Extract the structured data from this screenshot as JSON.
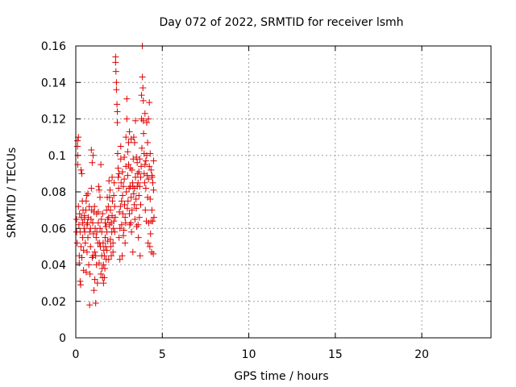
{
  "chart_data": {
    "type": "scatter",
    "title": "Day 072 of 2022, SRMTID for receiver lsmh",
    "xlabel": "GPS time / hours",
    "ylabel": "SRMTID / TECUs",
    "xlim": [
      0,
      24
    ],
    "ylim": [
      0,
      0.16
    ],
    "x_ticks": [
      0,
      5,
      10,
      15,
      20
    ],
    "x_tick_labels": [
      "0",
      "5",
      "10",
      "15",
      "20"
    ],
    "y_ticks": [
      0,
      0.02,
      0.04,
      0.06,
      0.08,
      0.1,
      0.12,
      0.14,
      0.16
    ],
    "y_tick_labels": [
      "0",
      "0.02",
      "0.04",
      "0.06",
      "0.08",
      "0.1",
      "0.12",
      "0.14",
      "0.16"
    ],
    "grid": true,
    "marker": "plus",
    "color": "#e00000",
    "series": [
      {
        "name": "SRMTID",
        "points": [
          [
            0.05,
            0.065
          ],
          [
            0.05,
            0.058
          ],
          [
            0.08,
            0.052
          ],
          [
            0.1,
            0.108
          ],
          [
            0.1,
            0.105
          ],
          [
            0.12,
            0.1
          ],
          [
            0.12,
            0.095
          ],
          [
            0.15,
            0.11
          ],
          [
            0.15,
            0.072
          ],
          [
            0.18,
            0.062
          ],
          [
            0.2,
            0.045
          ],
          [
            0.2,
            0.041
          ],
          [
            0.22,
            0.068
          ],
          [
            0.25,
            0.058
          ],
          [
            0.25,
            0.031
          ],
          [
            0.28,
            0.029
          ],
          [
            0.3,
            0.092
          ],
          [
            0.3,
            0.05
          ],
          [
            0.32,
            0.066
          ],
          [
            0.35,
            0.09
          ],
          [
            0.35,
            0.044
          ],
          [
            0.38,
            0.075
          ],
          [
            0.4,
            0.063
          ],
          [
            0.4,
            0.055
          ],
          [
            0.42,
            0.07
          ],
          [
            0.45,
            0.048
          ],
          [
            0.45,
            0.037
          ],
          [
            0.48,
            0.06
          ],
          [
            0.5,
            0.065
          ],
          [
            0.5,
            0.067
          ],
          [
            0.52,
            0.058
          ],
          [
            0.55,
            0.052
          ],
          [
            0.58,
            0.07
          ],
          [
            0.6,
            0.075
          ],
          [
            0.6,
            0.036
          ],
          [
            0.62,
            0.078
          ],
          [
            0.65,
            0.062
          ],
          [
            0.65,
            0.047
          ],
          [
            0.68,
            0.063
          ],
          [
            0.7,
            0.079
          ],
          [
            0.7,
            0.055
          ],
          [
            0.72,
            0.066
          ],
          [
            0.75,
            0.04
          ],
          [
            0.78,
            0.072
          ],
          [
            0.8,
            0.058
          ],
          [
            0.8,
            0.018
          ],
          [
            0.82,
            0.035
          ],
          [
            0.85,
            0.06
          ],
          [
            0.85,
            0.05
          ],
          [
            0.88,
            0.065
          ],
          [
            0.9,
            0.103
          ],
          [
            0.9,
            0.082
          ],
          [
            0.92,
            0.07
          ],
          [
            0.95,
            0.096
          ],
          [
            0.95,
            0.044
          ],
          [
            0.98,
            0.063
          ],
          [
            1.0,
            0.1
          ],
          [
            1.0,
            0.045
          ],
          [
            1.02,
            0.057
          ],
          [
            1.05,
            0.069
          ],
          [
            1.05,
            0.026
          ],
          [
            1.08,
            0.072
          ],
          [
            1.1,
            0.047
          ],
          [
            1.1,
            0.032
          ],
          [
            1.12,
            0.06
          ],
          [
            1.15,
            0.045
          ],
          [
            1.15,
            0.019
          ],
          [
            1.18,
            0.055
          ],
          [
            1.2,
            0.068
          ],
          [
            1.2,
            0.04
          ],
          [
            1.22,
            0.058
          ],
          [
            1.25,
            0.03
          ],
          [
            1.28,
            0.052
          ],
          [
            1.3,
            0.069
          ],
          [
            1.3,
            0.063
          ],
          [
            1.32,
            0.083
          ],
          [
            1.35,
            0.081
          ],
          [
            1.35,
            0.041
          ],
          [
            1.38,
            0.052
          ],
          [
            1.4,
            0.077
          ],
          [
            1.4,
            0.06
          ],
          [
            1.42,
            0.05
          ],
          [
            1.45,
            0.095
          ],
          [
            1.45,
            0.035
          ],
          [
            1.48,
            0.065
          ],
          [
            1.5,
            0.058
          ],
          [
            1.5,
            0.045
          ],
          [
            1.52,
            0.038
          ],
          [
            1.55,
            0.033
          ],
          [
            1.55,
            0.068
          ],
          [
            1.58,
            0.052
          ],
          [
            1.6,
            0.04
          ],
          [
            1.6,
            0.03
          ],
          [
            1.62,
            0.048
          ],
          [
            1.65,
            0.045
          ],
          [
            1.65,
            0.033
          ],
          [
            1.68,
            0.038
          ],
          [
            1.7,
            0.063
          ],
          [
            1.7,
            0.055
          ],
          [
            1.72,
            0.05
          ],
          [
            1.75,
            0.061
          ],
          [
            1.75,
            0.043
          ],
          [
            1.78,
            0.07
          ],
          [
            1.8,
            0.058
          ],
          [
            1.8,
            0.048
          ],
          [
            1.82,
            0.077
          ],
          [
            1.85,
            0.065
          ],
          [
            1.85,
            0.053
          ],
          [
            1.88,
            0.072
          ],
          [
            1.9,
            0.066
          ],
          [
            1.9,
            0.043
          ],
          [
            1.92,
            0.086
          ],
          [
            1.95,
            0.062
          ],
          [
            1.95,
            0.077
          ],
          [
            1.98,
            0.081
          ],
          [
            2.0,
            0.07
          ],
          [
            2.0,
            0.054
          ],
          [
            2.02,
            0.05
          ],
          [
            2.05,
            0.063
          ],
          [
            2.05,
            0.045
          ],
          [
            2.08,
            0.058
          ],
          [
            2.1,
            0.088
          ],
          [
            2.1,
            0.067
          ],
          [
            2.12,
            0.075
          ],
          [
            2.15,
            0.052
          ],
          [
            2.15,
            0.047
          ],
          [
            2.18,
            0.06
          ],
          [
            2.2,
            0.078
          ],
          [
            2.2,
            0.064
          ],
          [
            2.22,
            0.085
          ],
          [
            2.25,
            0.072
          ],
          [
            2.25,
            0.058
          ],
          [
            2.28,
            0.066
          ],
          [
            2.3,
            0.154
          ],
          [
            2.3,
            0.151
          ],
          [
            2.32,
            0.146
          ],
          [
            2.35,
            0.14
          ],
          [
            2.35,
            0.136
          ],
          [
            2.38,
            0.128
          ],
          [
            2.4,
            0.124
          ],
          [
            2.4,
            0.118
          ],
          [
            2.42,
            0.101
          ],
          [
            2.45,
            0.093
          ],
          [
            2.45,
            0.088
          ],
          [
            2.48,
            0.082
          ],
          [
            2.5,
            0.09
          ],
          [
            2.5,
            0.055
          ],
          [
            2.52,
            0.069
          ],
          [
            2.55,
            0.06
          ],
          [
            2.55,
            0.043
          ],
          [
            2.58,
            0.072
          ],
          [
            2.6,
            0.105
          ],
          [
            2.6,
            0.098
          ],
          [
            2.62,
            0.085
          ],
          [
            2.65,
            0.075
          ],
          [
            2.65,
            0.062
          ],
          [
            2.68,
            0.045
          ],
          [
            2.7,
            0.091
          ],
          [
            2.7,
            0.078
          ],
          [
            2.72,
            0.068
          ],
          [
            2.75,
            0.083
          ],
          [
            2.75,
            0.056
          ],
          [
            2.78,
            0.059
          ],
          [
            2.8,
            0.099
          ],
          [
            2.8,
            0.087
          ],
          [
            2.82,
            0.073
          ],
          [
            2.85,
            0.066
          ],
          [
            2.85,
            0.052
          ],
          [
            2.88,
            0.063
          ],
          [
            2.9,
            0.11
          ],
          [
            2.9,
            0.094
          ],
          [
            2.92,
            0.08
          ],
          [
            2.95,
            0.131
          ],
          [
            2.95,
            0.12
          ],
          [
            2.98,
            0.071
          ],
          [
            3.0,
            0.102
          ],
          [
            3.0,
            0.089
          ],
          [
            3.02,
            0.075
          ],
          [
            3.05,
            0.107
          ],
          [
            3.05,
            0.095
          ],
          [
            3.08,
            0.082
          ],
          [
            3.1,
            0.113
          ],
          [
            3.1,
            0.068
          ],
          [
            3.12,
            0.062
          ],
          [
            3.15,
            0.093
          ],
          [
            3.15,
            0.083
          ],
          [
            3.18,
            0.063
          ],
          [
            3.2,
            0.109
          ],
          [
            3.2,
            0.077
          ],
          [
            3.22,
            0.058
          ],
          [
            3.25,
            0.092
          ],
          [
            3.25,
            0.07
          ],
          [
            3.28,
            0.085
          ],
          [
            3.3,
            0.083
          ],
          [
            3.3,
            0.047
          ],
          [
            3.32,
            0.098
          ],
          [
            3.35,
            0.11
          ],
          [
            3.35,
            0.079
          ],
          [
            3.38,
            0.073
          ],
          [
            3.4,
            0.107
          ],
          [
            3.4,
            0.082
          ],
          [
            3.42,
            0.065
          ],
          [
            3.45,
            0.119
          ],
          [
            3.45,
            0.088
          ],
          [
            3.48,
            0.076
          ],
          [
            3.5,
            0.099
          ],
          [
            3.5,
            0.071
          ],
          [
            3.52,
            0.061
          ],
          [
            3.55,
            0.096
          ],
          [
            3.55,
            0.083
          ],
          [
            3.58,
            0.09
          ],
          [
            3.6,
            0.085
          ],
          [
            3.6,
            0.062
          ],
          [
            3.62,
            0.055
          ],
          [
            3.65,
            0.091
          ],
          [
            3.65,
            0.078
          ],
          [
            3.68,
            0.066
          ],
          [
            3.7,
            0.098
          ],
          [
            3.7,
            0.083
          ],
          [
            3.72,
            0.045
          ],
          [
            3.75,
            0.088
          ],
          [
            3.75,
            0.073
          ],
          [
            3.78,
            0.094
          ],
          [
            3.8,
            0.133
          ],
          [
            3.8,
            0.12
          ],
          [
            3.82,
            0.104
          ],
          [
            3.85,
            0.16
          ],
          [
            3.85,
            0.143
          ],
          [
            3.88,
            0.137
          ],
          [
            3.9,
            0.13
          ],
          [
            3.9,
            0.119
          ],
          [
            3.92,
            0.112
          ],
          [
            3.95,
            0.101
          ],
          [
            3.95,
            0.09
          ],
          [
            3.98,
            0.085
          ],
          [
            4.0,
            0.123
          ],
          [
            4.0,
            0.095
          ],
          [
            4.02,
            0.07
          ],
          [
            4.05,
            0.097
          ],
          [
            4.05,
            0.082
          ],
          [
            4.08,
            0.064
          ],
          [
            4.1,
            0.118
          ],
          [
            4.1,
            0.1
          ],
          [
            4.12,
            0.089
          ],
          [
            4.15,
            0.107
          ],
          [
            4.15,
            0.077
          ],
          [
            4.18,
            0.052
          ],
          [
            4.2,
            0.12
          ],
          [
            4.2,
            0.087
          ],
          [
            4.22,
            0.063
          ],
          [
            4.25,
            0.129
          ],
          [
            4.25,
            0.094
          ],
          [
            4.28,
            0.05
          ],
          [
            4.3,
            0.101
          ],
          [
            4.3,
            0.076
          ],
          [
            4.32,
            0.057
          ],
          [
            4.35,
            0.092
          ],
          [
            4.35,
            0.064
          ],
          [
            4.38,
            0.047
          ],
          [
            4.4,
            0.089
          ],
          [
            4.4,
            0.07
          ],
          [
            4.42,
            0.088
          ],
          [
            4.45,
            0.085
          ],
          [
            4.45,
            0.064
          ],
          [
            4.48,
            0.046
          ],
          [
            4.5,
            0.097
          ],
          [
            4.5,
            0.081
          ],
          [
            4.52,
            0.066
          ]
        ]
      }
    ]
  }
}
